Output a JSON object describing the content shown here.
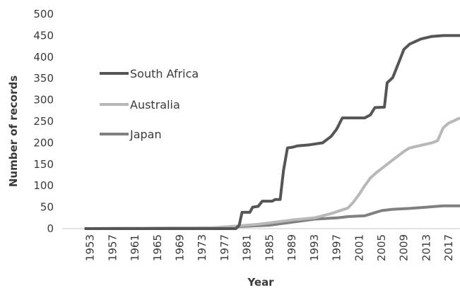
{
  "chart_data": {
    "type": "line",
    "xlabel": "Year",
    "ylabel": "Number of records",
    "xlim": [
      1948,
      2019
    ],
    "ylim": [
      0,
      500
    ],
    "yticks": [
      0,
      50,
      100,
      150,
      200,
      250,
      300,
      350,
      400,
      450,
      500
    ],
    "xticks": [
      1953,
      1957,
      1961,
      1965,
      1969,
      1973,
      1977,
      1981,
      1985,
      1989,
      1993,
      1997,
      2001,
      2005,
      2009,
      2013,
      2017
    ],
    "grid": false,
    "legend": "inside left",
    "series": [
      {
        "name": "South Africa",
        "color": "#555555",
        "points": [
          [
            1952,
            0
          ],
          [
            1979,
            0
          ],
          [
            1979.6,
            8
          ],
          [
            1980.1,
            38
          ],
          [
            1981.5,
            38
          ],
          [
            1982,
            50
          ],
          [
            1983,
            52
          ],
          [
            1983.7,
            64
          ],
          [
            1985.5,
            64
          ],
          [
            1986,
            68
          ],
          [
            1986.9,
            68
          ],
          [
            1987.5,
            135
          ],
          [
            1988.2,
            188
          ],
          [
            1989.2,
            190
          ],
          [
            1990,
            193
          ],
          [
            1992,
            195
          ],
          [
            1993,
            197
          ],
          [
            1994.5,
            200
          ],
          [
            1996,
            215
          ],
          [
            1997,
            232
          ],
          [
            1998,
            258
          ],
          [
            2002,
            258
          ],
          [
            2003,
            265
          ],
          [
            2003.8,
            282
          ],
          [
            2005.5,
            283
          ],
          [
            2006,
            340
          ],
          [
            2007,
            352
          ],
          [
            2008,
            385
          ],
          [
            2009,
            418
          ],
          [
            2010,
            430
          ],
          [
            2012,
            442
          ],
          [
            2014,
            448
          ],
          [
            2016,
            450
          ],
          [
            2019,
            450
          ]
        ]
      },
      {
        "name": "Australia",
        "color": "#b8b8b8",
        "points": [
          [
            1952,
            0
          ],
          [
            1975,
            2
          ],
          [
            1978,
            5
          ],
          [
            1983,
            10
          ],
          [
            1986,
            15
          ],
          [
            1989,
            20
          ],
          [
            1993,
            25
          ],
          [
            1996,
            35
          ],
          [
            1999,
            48
          ],
          [
            2000,
            62
          ],
          [
            2001,
            80
          ],
          [
            2002,
            100
          ],
          [
            2003,
            118
          ],
          [
            2004,
            130
          ],
          [
            2005,
            140
          ],
          [
            2006,
            150
          ],
          [
            2007,
            160
          ],
          [
            2008,
            170
          ],
          [
            2009,
            180
          ],
          [
            2010,
            188
          ],
          [
            2012,
            194
          ],
          [
            2014,
            200
          ],
          [
            2015,
            205
          ],
          [
            2016,
            235
          ],
          [
            2017,
            246
          ],
          [
            2018,
            252
          ],
          [
            2019,
            258
          ]
        ]
      },
      {
        "name": "Japan",
        "color": "#808080",
        "points": [
          [
            1952,
            0
          ],
          [
            1975,
            2
          ],
          [
            1980,
            5
          ],
          [
            1985,
            8
          ],
          [
            1989,
            15
          ],
          [
            1993,
            22
          ],
          [
            1997,
            25
          ],
          [
            1999,
            28
          ],
          [
            2002,
            30
          ],
          [
            2004,
            38
          ],
          [
            2005,
            42
          ],
          [
            2007,
            45
          ],
          [
            2010,
            47
          ],
          [
            2013,
            50
          ],
          [
            2016,
            53
          ],
          [
            2019,
            53
          ]
        ]
      }
    ]
  }
}
